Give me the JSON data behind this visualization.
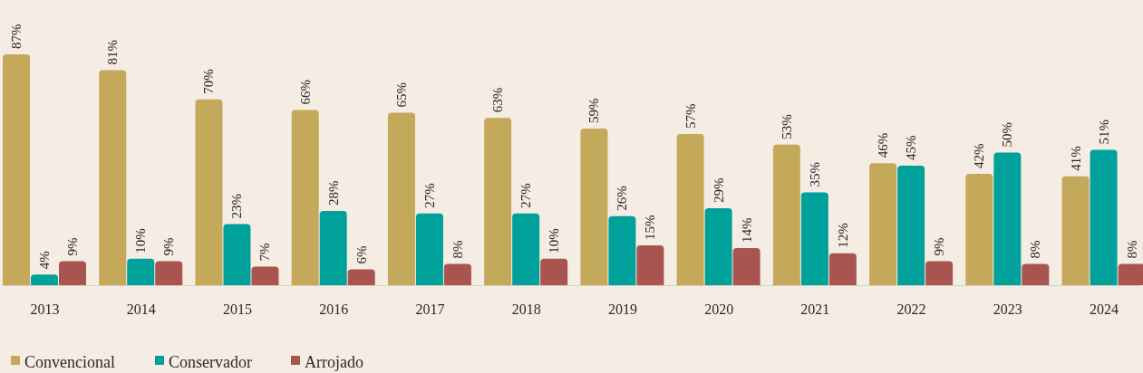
{
  "chart_data": {
    "type": "bar",
    "categories": [
      "2013",
      "2014",
      "2015",
      "2016",
      "2017",
      "2018",
      "2019",
      "2020",
      "2021",
      "2022",
      "2023",
      "2024"
    ],
    "legend": "bottom left",
    "series": [
      {
        "name": "Convencional",
        "color": "#c4a95a",
        "values": [
          87,
          81,
          70,
          66,
          65,
          63,
          59,
          57,
          53,
          46,
          42,
          41
        ],
        "value_labels": [
          "87%",
          "81%",
          "70%",
          "66%",
          "65%",
          "63%",
          "59%",
          "57%",
          "53%",
          "46%",
          "42%",
          "41%"
        ]
      },
      {
        "name": "Conservador",
        "color": "#00a19b",
        "values": [
          4,
          10,
          23,
          28,
          27,
          27,
          26,
          29,
          35,
          45,
          50,
          51
        ],
        "value_labels": [
          "4%",
          "10%",
          "23%",
          "28%",
          "27%",
          "27%",
          "26%",
          "29%",
          "35%",
          "45%",
          "50%",
          "51%"
        ]
      },
      {
        "name": "Arrojado",
        "color": "#a8554f",
        "values": [
          9,
          9,
          7,
          6,
          8,
          10,
          15,
          14,
          12,
          9,
          8,
          8
        ],
        "value_labels": [
          "9%",
          "9%",
          "7%",
          "6%",
          "8%",
          "10%",
          "15%",
          "14%",
          "12%",
          "9%",
          "8%",
          "8%"
        ]
      }
    ]
  }
}
